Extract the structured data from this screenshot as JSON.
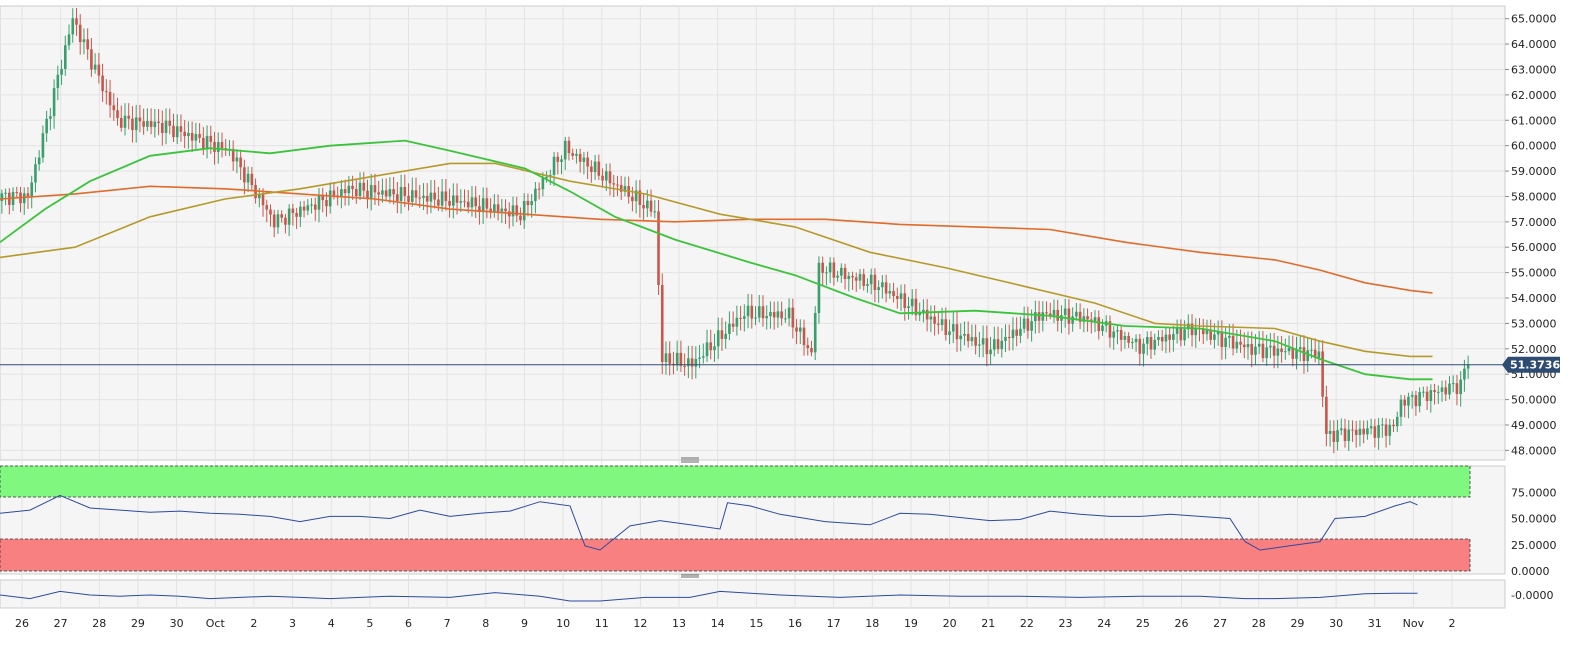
{
  "colors": {
    "bull": "#3a9e6d",
    "bear": "#c8574b",
    "sma_fast": "#3bc43b",
    "sma_mid": "#b59a2a",
    "sma_slow": "#e06b2a",
    "current_line": "#2e4c72",
    "rsi_line": "#2c4aa0",
    "overbought_fill": "#80f880",
    "oversold_fill": "#f88080",
    "pane_bg": "#f5f5f5"
  },
  "price_axis": {
    "min": 47.7,
    "max": 65.5,
    "labels": [
      "65.0000",
      "64.0000",
      "63.0000",
      "62.0000",
      "61.0000",
      "60.0000",
      "59.0000",
      "58.0000",
      "57.0000",
      "56.0000",
      "55.0000",
      "54.0000",
      "53.0000",
      "52.0000",
      "51.0000",
      "50.0000",
      "49.0000",
      "48.0000"
    ]
  },
  "current_price": {
    "value": 51.373635,
    "label": "51.373635"
  },
  "rsi_axis": {
    "labels": [
      "75.0000",
      "50.0000",
      "25.0000",
      "0.0000"
    ],
    "overbought": 70,
    "oversold": 30
  },
  "osc_axis": {
    "labels": [
      "-0.0000"
    ]
  },
  "date_axis": {
    "labels": [
      "26",
      "27",
      "28",
      "29",
      "30",
      "Oct",
      "2",
      "3",
      "4",
      "5",
      "6",
      "7",
      "8",
      "9",
      "10",
      "11",
      "12",
      "13",
      "14",
      "15",
      "16",
      "17",
      "18",
      "19",
      "20",
      "21",
      "22",
      "23",
      "24",
      "25",
      "26",
      "27",
      "28",
      "29",
      "30",
      "31",
      "Nov",
      "2"
    ]
  },
  "chart_data": {
    "type": "candlestick",
    "price_range": [
      47.7,
      65.5
    ],
    "current_price": 51.373635,
    "segments": [
      {
        "bars": 8,
        "close": 58.0
      },
      {
        "bars": 12,
        "close": 65.0
      },
      {
        "bars": 12,
        "close": 61.0
      },
      {
        "bars": 12,
        "close": 60.8
      },
      {
        "bars": 18,
        "close": 59.8
      },
      {
        "bars": 12,
        "close": 57.0
      },
      {
        "bars": 20,
        "close": 58.3
      },
      {
        "bars": 18,
        "close": 58.0
      },
      {
        "bars": 12,
        "close": 57.8
      },
      {
        "bars": 16,
        "close": 57.3
      },
      {
        "bars": 12,
        "close": 59.9
      },
      {
        "bars": 14,
        "close": 58.4
      },
      {
        "bars": 10,
        "close": 57.4
      },
      {
        "bars": 2,
        "close": 51.6
      },
      {
        "bars": 8,
        "close": 51.4
      },
      {
        "bars": 14,
        "close": 53.4
      },
      {
        "bars": 12,
        "close": 53.3
      },
      {
        "bars": 6,
        "close": 51.8
      },
      {
        "bars": 2,
        "close": 55.2
      },
      {
        "bars": 16,
        "close": 54.5
      },
      {
        "bars": 18,
        "close": 52.8
      },
      {
        "bars": 12,
        "close": 52.0
      },
      {
        "bars": 14,
        "close": 53.4
      },
      {
        "bars": 12,
        "close": 53.2
      },
      {
        "bars": 14,
        "close": 52.1
      },
      {
        "bars": 14,
        "close": 52.8
      },
      {
        "bars": 16,
        "close": 52.0
      },
      {
        "bars": 18,
        "close": 51.8
      },
      {
        "bars": 2,
        "close": 48.6
      },
      {
        "bars": 18,
        "close": 48.9
      },
      {
        "bars": 2,
        "close": 49.9
      },
      {
        "bars": 16,
        "close": 50.6
      },
      {
        "bars": 2,
        "close": 51.6
      }
    ],
    "sma_fast": [
      [
        0,
        56.2
      ],
      [
        0.03,
        57.5
      ],
      [
        0.06,
        58.6
      ],
      [
        0.1,
        59.6
      ],
      [
        0.14,
        59.9
      ],
      [
        0.18,
        59.7
      ],
      [
        0.22,
        60.0
      ],
      [
        0.27,
        60.2
      ],
      [
        0.3,
        59.8
      ],
      [
        0.35,
        59.1
      ],
      [
        0.38,
        58.2
      ],
      [
        0.41,
        57.2
      ],
      [
        0.45,
        56.3
      ],
      [
        0.5,
        55.4
      ],
      [
        0.53,
        54.9
      ],
      [
        0.57,
        54.0
      ],
      [
        0.6,
        53.4
      ],
      [
        0.65,
        53.5
      ],
      [
        0.7,
        53.3
      ],
      [
        0.75,
        52.9
      ],
      [
        0.8,
        52.8
      ],
      [
        0.85,
        52.3
      ],
      [
        0.88,
        51.6
      ],
      [
        0.91,
        51.0
      ],
      [
        0.94,
        50.8
      ],
      [
        0.955,
        50.8
      ]
    ],
    "sma_mid": [
      [
        0,
        55.6
      ],
      [
        0.05,
        56.0
      ],
      [
        0.1,
        57.2
      ],
      [
        0.15,
        57.9
      ],
      [
        0.2,
        58.3
      ],
      [
        0.25,
        58.8
      ],
      [
        0.3,
        59.3
      ],
      [
        0.33,
        59.3
      ],
      [
        0.38,
        58.6
      ],
      [
        0.43,
        58.1
      ],
      [
        0.48,
        57.3
      ],
      [
        0.53,
        56.8
      ],
      [
        0.58,
        55.8
      ],
      [
        0.63,
        55.2
      ],
      [
        0.68,
        54.5
      ],
      [
        0.73,
        53.8
      ],
      [
        0.77,
        53.0
      ],
      [
        0.8,
        52.9
      ],
      [
        0.85,
        52.8
      ],
      [
        0.88,
        52.3
      ],
      [
        0.91,
        51.9
      ],
      [
        0.94,
        51.7
      ],
      [
        0.955,
        51.7
      ]
    ],
    "sma_slow": [
      [
        0,
        57.9
      ],
      [
        0.05,
        58.1
      ],
      [
        0.1,
        58.4
      ],
      [
        0.15,
        58.3
      ],
      [
        0.2,
        58.1
      ],
      [
        0.25,
        57.9
      ],
      [
        0.3,
        57.5
      ],
      [
        0.35,
        57.3
      ],
      [
        0.4,
        57.1
      ],
      [
        0.45,
        57.0
      ],
      [
        0.5,
        57.1
      ],
      [
        0.55,
        57.1
      ],
      [
        0.6,
        56.9
      ],
      [
        0.65,
        56.8
      ],
      [
        0.7,
        56.7
      ],
      [
        0.75,
        56.2
      ],
      [
        0.8,
        55.8
      ],
      [
        0.85,
        55.5
      ],
      [
        0.88,
        55.1
      ],
      [
        0.91,
        54.6
      ],
      [
        0.94,
        54.3
      ],
      [
        0.955,
        54.2
      ]
    ],
    "rsi": [
      [
        0,
        55
      ],
      [
        0.02,
        58
      ],
      [
        0.04,
        72
      ],
      [
        0.06,
        60
      ],
      [
        0.08,
        58
      ],
      [
        0.1,
        56
      ],
      [
        0.12,
        57
      ],
      [
        0.14,
        55
      ],
      [
        0.16,
        54
      ],
      [
        0.18,
        52
      ],
      [
        0.2,
        47
      ],
      [
        0.22,
        52
      ],
      [
        0.24,
        52
      ],
      [
        0.26,
        50
      ],
      [
        0.28,
        58
      ],
      [
        0.3,
        52
      ],
      [
        0.32,
        55
      ],
      [
        0.34,
        57
      ],
      [
        0.36,
        66
      ],
      [
        0.38,
        62
      ],
      [
        0.39,
        24
      ],
      [
        0.4,
        20
      ],
      [
        0.42,
        43
      ],
      [
        0.44,
        48
      ],
      [
        0.46,
        44
      ],
      [
        0.48,
        40
      ],
      [
        0.485,
        65
      ],
      [
        0.5,
        62
      ],
      [
        0.52,
        54
      ],
      [
        0.55,
        47
      ],
      [
        0.58,
        44
      ],
      [
        0.6,
        55
      ],
      [
        0.62,
        54
      ],
      [
        0.64,
        51
      ],
      [
        0.66,
        48
      ],
      [
        0.68,
        49
      ],
      [
        0.7,
        57
      ],
      [
        0.72,
        54
      ],
      [
        0.74,
        52
      ],
      [
        0.76,
        52
      ],
      [
        0.78,
        54
      ],
      [
        0.8,
        52
      ],
      [
        0.82,
        50
      ],
      [
        0.83,
        28
      ],
      [
        0.84,
        20
      ],
      [
        0.86,
        24
      ],
      [
        0.88,
        28
      ],
      [
        0.89,
        50
      ],
      [
        0.91,
        52
      ],
      [
        0.93,
        62
      ],
      [
        0.94,
        66
      ],
      [
        0.945,
        63
      ]
    ],
    "osc": [
      [
        0,
        0
      ],
      [
        0.02,
        -0.3
      ],
      [
        0.04,
        0.3
      ],
      [
        0.06,
        0
      ],
      [
        0.08,
        -0.1
      ],
      [
        0.1,
        0
      ],
      [
        0.12,
        -0.1
      ],
      [
        0.14,
        -0.3
      ],
      [
        0.16,
        -0.2
      ],
      [
        0.18,
        -0.1
      ],
      [
        0.2,
        -0.2
      ],
      [
        0.22,
        -0.3
      ],
      [
        0.26,
        -0.1
      ],
      [
        0.3,
        -0.2
      ],
      [
        0.33,
        0.2
      ],
      [
        0.36,
        -0.1
      ],
      [
        0.38,
        -0.5
      ],
      [
        0.4,
        -0.5
      ],
      [
        0.43,
        -0.2
      ],
      [
        0.46,
        -0.2
      ],
      [
        0.48,
        0.3
      ],
      [
        0.52,
        0
      ],
      [
        0.56,
        -0.2
      ],
      [
        0.6,
        0
      ],
      [
        0.64,
        -0.1
      ],
      [
        0.68,
        -0.1
      ],
      [
        0.72,
        -0.2
      ],
      [
        0.76,
        -0.1
      ],
      [
        0.8,
        -0.1
      ],
      [
        0.83,
        -0.3
      ],
      [
        0.85,
        -0.3
      ],
      [
        0.88,
        -0.2
      ],
      [
        0.91,
        0.1
      ],
      [
        0.93,
        0.15
      ],
      [
        0.945,
        0.15
      ]
    ]
  }
}
